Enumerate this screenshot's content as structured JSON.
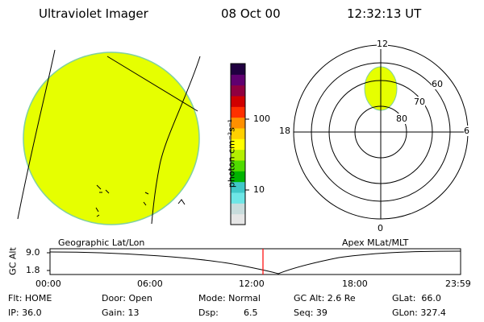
{
  "header": {
    "instrument": "Ultraviolet Imager",
    "date": "08 Oct 00",
    "time": "12:32:13 UT"
  },
  "colorbar": {
    "unit_label": "photon cm⁻²s⁻¹",
    "tick_100": "100",
    "tick_10": "10",
    "colors": [
      "#e6e6e6",
      "#c8dcdc",
      "#6ee6e6",
      "#40c8c8",
      "#00b400",
      "#50dc00",
      "#b4f000",
      "#ffff00",
      "#ffd000",
      "#ff9000",
      "#ff3000",
      "#d00000",
      "#900040",
      "#600070",
      "#200040"
    ]
  },
  "polar_plot": {
    "mlt_12": "12",
    "mlt_18": "18",
    "mlt_6": "6",
    "mlt_0": "0",
    "lat_60": "60",
    "lat_70": "70",
    "lat_80": "80",
    "fill_color": "#e6ff00"
  },
  "globe": {
    "fill_color": "#e6ff00",
    "edge_color": "#80d0a0"
  },
  "timeline": {
    "left_label": "Geographic Lat/Lon",
    "right_label": "Apex MLat/MLT",
    "axis_title": "GC Alt",
    "y_high": "9.0",
    "y_low": "1.8",
    "t0": "00:00",
    "t1": "06:00",
    "t2": "12:00",
    "t3": "18:00",
    "t4": "23:59",
    "marker_color": "#ff0000"
  },
  "status": {
    "flt": "Flt: HOME",
    "ip": "IP: 36.0",
    "door": "Door: Open",
    "gain": "Gain: 13",
    "mode": "Mode: Normal",
    "dsp_label": "Dsp:",
    "dsp_value": "6.5",
    "gc_alt": "GC Alt: 2.6 Re",
    "seq": "Seq: 39",
    "glat": "GLat:  66.0",
    "glon": "GLon: 327.4"
  }
}
